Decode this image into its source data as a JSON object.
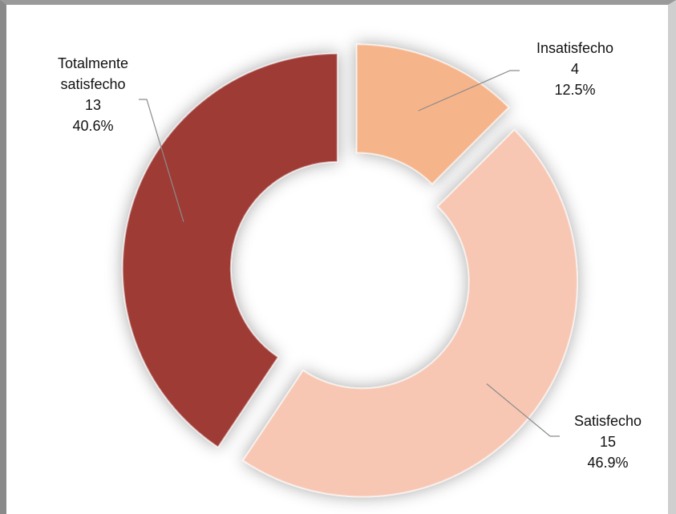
{
  "chart_data": {
    "type": "pie",
    "variant": "donut",
    "slices": [
      {
        "label": "Insatisfecho",
        "value": 4,
        "percent": "12.5%",
        "color": "#f6b48a"
      },
      {
        "label": "Satisfecho",
        "value": 15,
        "percent": "46.9%",
        "color": "#f7c7b3"
      },
      {
        "label": "Totalmente satisfecho",
        "value": 13,
        "percent": "40.6%",
        "color": "#9e3b36"
      }
    ],
    "labels": [
      {
        "lines": [
          "Insatisfecho",
          "4",
          "12.5%"
        ]
      },
      {
        "lines": [
          "Satisfecho",
          "15",
          "46.9%"
        ]
      },
      {
        "lines": [
          "Totalmente",
          "satisfecho",
          "13",
          "40.6%"
        ]
      }
    ]
  }
}
